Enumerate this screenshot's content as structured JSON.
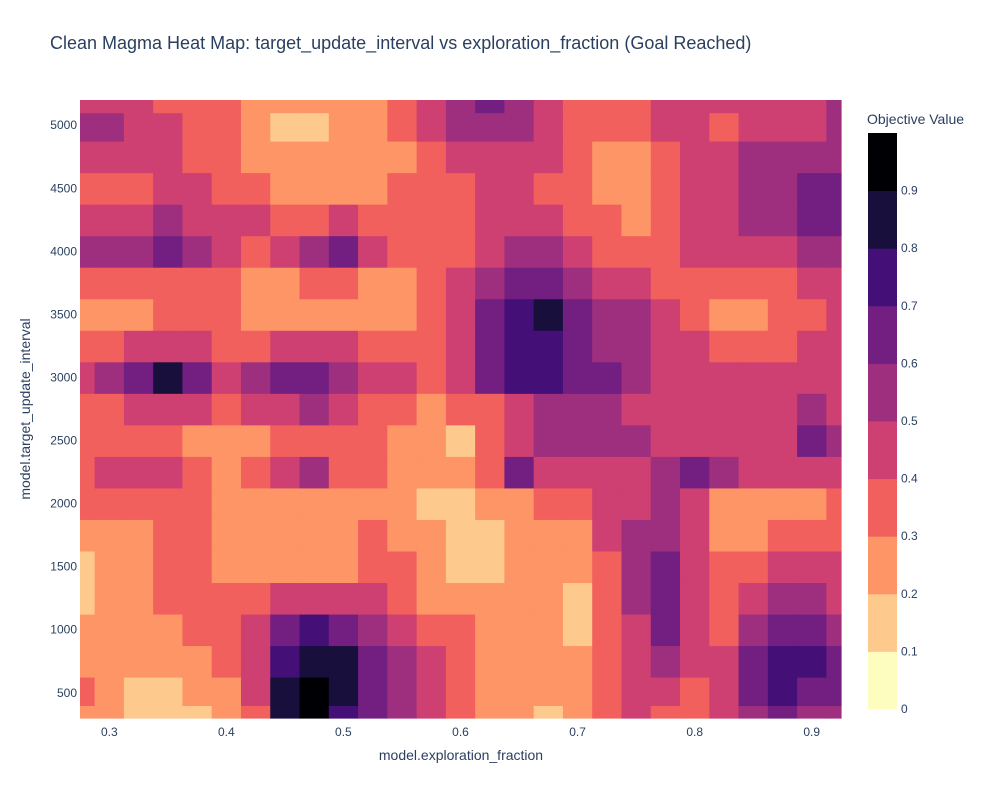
{
  "chart_data": {
    "type": "heatmap",
    "title": "Clean Magma Heat Map: target_update_interval vs exploration_fraction (Goal Reached)",
    "xlabel": "model.exploration_fraction",
    "ylabel": "model.target_update_interval",
    "colorbar_title": "Objective Value",
    "colorscale": "magma",
    "colorscale_stops": [
      "#fcfdbf",
      "#fec98d",
      "#fd9567",
      "#f1605d",
      "#cd4071",
      "#9e2f7f",
      "#721f81",
      "#440f76",
      "#180f3d",
      "#000004"
    ],
    "zlim": [
      0,
      1
    ],
    "xlim": [
      0.275,
      0.925
    ],
    "ylim": [
      300,
      5200
    ],
    "x_ticks": [
      0.3,
      0.4,
      0.5,
      0.6,
      0.7,
      0.8,
      0.9
    ],
    "y_ticks": [
      500,
      1000,
      1500,
      2000,
      2500,
      3000,
      3500,
      4000,
      4500,
      5000
    ],
    "colorbar_ticks": [
      0,
      0.1,
      0.2,
      0.3,
      0.4,
      0.5,
      0.6,
      0.7,
      0.8,
      0.9
    ],
    "x": [
      0.275,
      0.3,
      0.325,
      0.35,
      0.375,
      0.4,
      0.425,
      0.45,
      0.475,
      0.5,
      0.525,
      0.55,
      0.575,
      0.6,
      0.625,
      0.65,
      0.675,
      0.7,
      0.725,
      0.75,
      0.775,
      0.8,
      0.825,
      0.85,
      0.875,
      0.9,
      0.925
    ],
    "y": [
      300,
      500,
      750,
      1000,
      1250,
      1500,
      1750,
      2000,
      2250,
      2500,
      2750,
      3000,
      3250,
      3500,
      3750,
      4000,
      4250,
      4500,
      4750,
      5000,
      5200
    ],
    "z": [
      [
        0.2,
        0.2,
        0.1,
        0.1,
        0.1,
        0.2,
        0.3,
        0.8,
        0.9,
        0.7,
        0.6,
        0.5,
        0.4,
        0.3,
        0.2,
        0.2,
        0.1,
        0.2,
        0.3,
        0.4,
        0.3,
        0.3,
        0.4,
        0.5,
        0.6,
        0.5,
        0.5
      ],
      [
        0.3,
        0.2,
        0.1,
        0.1,
        0.2,
        0.2,
        0.4,
        0.8,
        0.9,
        0.8,
        0.6,
        0.5,
        0.4,
        0.3,
        0.2,
        0.2,
        0.2,
        0.2,
        0.3,
        0.4,
        0.4,
        0.3,
        0.4,
        0.6,
        0.7,
        0.6,
        0.6
      ],
      [
        0.2,
        0.2,
        0.2,
        0.2,
        0.2,
        0.3,
        0.4,
        0.7,
        0.8,
        0.8,
        0.6,
        0.5,
        0.4,
        0.3,
        0.2,
        0.2,
        0.2,
        0.2,
        0.3,
        0.4,
        0.5,
        0.4,
        0.4,
        0.6,
        0.7,
        0.7,
        0.6
      ],
      [
        0.2,
        0.2,
        0.2,
        0.2,
        0.3,
        0.3,
        0.4,
        0.6,
        0.7,
        0.6,
        0.5,
        0.4,
        0.3,
        0.3,
        0.2,
        0.2,
        0.2,
        0.1,
        0.3,
        0.4,
        0.6,
        0.4,
        0.3,
        0.5,
        0.6,
        0.6,
        0.5
      ],
      [
        0.1,
        0.2,
        0.2,
        0.3,
        0.3,
        0.3,
        0.3,
        0.4,
        0.4,
        0.4,
        0.4,
        0.3,
        0.2,
        0.2,
        0.2,
        0.2,
        0.2,
        0.1,
        0.3,
        0.5,
        0.6,
        0.4,
        0.3,
        0.4,
        0.5,
        0.5,
        0.4
      ],
      [
        0.1,
        0.2,
        0.2,
        0.3,
        0.3,
        0.2,
        0.2,
        0.2,
        0.2,
        0.2,
        0.3,
        0.3,
        0.2,
        0.1,
        0.1,
        0.2,
        0.2,
        0.2,
        0.3,
        0.5,
        0.6,
        0.4,
        0.3,
        0.3,
        0.4,
        0.4,
        0.4
      ],
      [
        0.2,
        0.2,
        0.2,
        0.3,
        0.3,
        0.2,
        0.2,
        0.2,
        0.2,
        0.2,
        0.3,
        0.2,
        0.2,
        0.1,
        0.1,
        0.2,
        0.2,
        0.2,
        0.4,
        0.5,
        0.5,
        0.4,
        0.2,
        0.2,
        0.3,
        0.3,
        0.3
      ],
      [
        0.3,
        0.3,
        0.3,
        0.3,
        0.3,
        0.2,
        0.2,
        0.2,
        0.2,
        0.2,
        0.2,
        0.2,
        0.1,
        0.1,
        0.2,
        0.2,
        0.3,
        0.3,
        0.4,
        0.4,
        0.5,
        0.4,
        0.2,
        0.2,
        0.2,
        0.2,
        0.3
      ],
      [
        0.3,
        0.4,
        0.4,
        0.4,
        0.3,
        0.2,
        0.3,
        0.4,
        0.5,
        0.3,
        0.3,
        0.2,
        0.2,
        0.2,
        0.3,
        0.6,
        0.4,
        0.4,
        0.4,
        0.4,
        0.5,
        0.6,
        0.5,
        0.4,
        0.4,
        0.4,
        0.4
      ],
      [
        0.3,
        0.3,
        0.3,
        0.3,
        0.2,
        0.2,
        0.2,
        0.3,
        0.3,
        0.3,
        0.3,
        0.2,
        0.2,
        0.1,
        0.3,
        0.4,
        0.5,
        0.5,
        0.5,
        0.5,
        0.4,
        0.4,
        0.4,
        0.4,
        0.4,
        0.6,
        0.5
      ],
      [
        0.3,
        0.3,
        0.4,
        0.4,
        0.4,
        0.3,
        0.4,
        0.4,
        0.5,
        0.4,
        0.3,
        0.3,
        0.2,
        0.3,
        0.3,
        0.4,
        0.5,
        0.5,
        0.5,
        0.4,
        0.4,
        0.4,
        0.4,
        0.4,
        0.4,
        0.5,
        0.4
      ],
      [
        0.4,
        0.5,
        0.6,
        0.8,
        0.6,
        0.4,
        0.5,
        0.6,
        0.6,
        0.5,
        0.4,
        0.4,
        0.3,
        0.4,
        0.6,
        0.7,
        0.7,
        0.6,
        0.6,
        0.5,
        0.4,
        0.4,
        0.4,
        0.4,
        0.4,
        0.4,
        0.4
      ],
      [
        0.3,
        0.3,
        0.4,
        0.4,
        0.4,
        0.3,
        0.3,
        0.4,
        0.4,
        0.4,
        0.3,
        0.3,
        0.3,
        0.4,
        0.6,
        0.7,
        0.7,
        0.6,
        0.5,
        0.5,
        0.4,
        0.4,
        0.3,
        0.3,
        0.3,
        0.4,
        0.4
      ],
      [
        0.2,
        0.2,
        0.2,
        0.3,
        0.3,
        0.3,
        0.2,
        0.2,
        0.2,
        0.2,
        0.2,
        0.2,
        0.3,
        0.4,
        0.6,
        0.7,
        0.8,
        0.6,
        0.5,
        0.5,
        0.4,
        0.3,
        0.2,
        0.2,
        0.3,
        0.3,
        0.4
      ],
      [
        0.3,
        0.3,
        0.3,
        0.3,
        0.3,
        0.3,
        0.2,
        0.2,
        0.3,
        0.3,
        0.2,
        0.2,
        0.3,
        0.4,
        0.5,
        0.6,
        0.6,
        0.5,
        0.4,
        0.4,
        0.3,
        0.3,
        0.3,
        0.3,
        0.3,
        0.4,
        0.4
      ],
      [
        0.5,
        0.5,
        0.5,
        0.6,
        0.5,
        0.4,
        0.3,
        0.4,
        0.5,
        0.6,
        0.4,
        0.3,
        0.3,
        0.3,
        0.4,
        0.5,
        0.5,
        0.4,
        0.3,
        0.3,
        0.3,
        0.4,
        0.4,
        0.4,
        0.4,
        0.5,
        0.5
      ],
      [
        0.4,
        0.4,
        0.4,
        0.5,
        0.4,
        0.4,
        0.4,
        0.3,
        0.3,
        0.4,
        0.3,
        0.3,
        0.3,
        0.3,
        0.4,
        0.4,
        0.4,
        0.3,
        0.3,
        0.2,
        0.3,
        0.4,
        0.4,
        0.5,
        0.5,
        0.6,
        0.6
      ],
      [
        0.3,
        0.3,
        0.3,
        0.4,
        0.4,
        0.3,
        0.3,
        0.2,
        0.2,
        0.2,
        0.2,
        0.3,
        0.3,
        0.3,
        0.4,
        0.4,
        0.3,
        0.3,
        0.2,
        0.2,
        0.3,
        0.4,
        0.4,
        0.5,
        0.5,
        0.6,
        0.6
      ],
      [
        0.4,
        0.4,
        0.4,
        0.4,
        0.3,
        0.3,
        0.2,
        0.2,
        0.2,
        0.2,
        0.2,
        0.2,
        0.3,
        0.4,
        0.4,
        0.4,
        0.4,
        0.3,
        0.2,
        0.2,
        0.3,
        0.4,
        0.4,
        0.5,
        0.5,
        0.5,
        0.5
      ],
      [
        0.5,
        0.5,
        0.4,
        0.4,
        0.3,
        0.3,
        0.2,
        0.1,
        0.1,
        0.2,
        0.2,
        0.3,
        0.4,
        0.5,
        0.5,
        0.5,
        0.4,
        0.3,
        0.3,
        0.3,
        0.4,
        0.4,
        0.3,
        0.4,
        0.4,
        0.4,
        0.5
      ],
      [
        0.4,
        0.4,
        0.4,
        0.3,
        0.3,
        0.3,
        0.2,
        0.2,
        0.2,
        0.2,
        0.2,
        0.3,
        0.4,
        0.5,
        0.6,
        0.5,
        0.4,
        0.3,
        0.3,
        0.3,
        0.4,
        0.4,
        0.4,
        0.4,
        0.4,
        0.4,
        0.5
      ]
    ]
  }
}
